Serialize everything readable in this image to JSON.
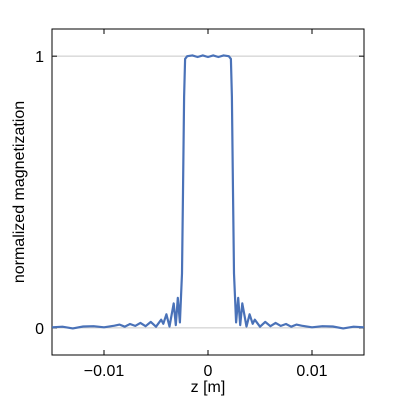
{
  "chart_data": {
    "type": "line",
    "title": "",
    "xlabel": "z [m]",
    "ylabel": "normalized magnetization",
    "xlim": [
      -0.015,
      0.015
    ],
    "ylim": [
      -0.1,
      1.1
    ],
    "x_ticks": [
      {
        "value": -0.01,
        "label": "−0.01"
      },
      {
        "value": 0,
        "label": "0"
      },
      {
        "value": 0.01,
        "label": "0.01"
      }
    ],
    "y_ticks": [
      {
        "value": 0,
        "label": "0"
      },
      {
        "value": 1,
        "label": "1"
      }
    ],
    "grid": "horizontal at y-ticks",
    "line_color": "#4a72b8",
    "series": [
      {
        "points": [
          [
            -0.015,
            0.002
          ],
          [
            -0.014,
            0.004
          ],
          [
            -0.013,
            -0.002
          ],
          [
            -0.012,
            0.005
          ],
          [
            -0.011,
            0.006
          ],
          [
            -0.01,
            0.002
          ],
          [
            -0.009,
            0.008
          ],
          [
            -0.0085,
            0.012
          ],
          [
            -0.008,
            0.004
          ],
          [
            -0.0075,
            0.014
          ],
          [
            -0.007,
            0.007
          ],
          [
            -0.0065,
            0.018
          ],
          [
            -0.006,
            0.006
          ],
          [
            -0.0055,
            0.022
          ],
          [
            -0.005,
            0.004
          ],
          [
            -0.0045,
            0.03
          ],
          [
            -0.0043,
            0.015
          ],
          [
            -0.004,
            0.05
          ],
          [
            -0.0037,
            0.005
          ],
          [
            -0.0033,
            0.09
          ],
          [
            -0.0031,
            0.01
          ],
          [
            -0.0029,
            0.11
          ],
          [
            -0.0027,
            0.02
          ],
          [
            -0.0025,
            0.2
          ],
          [
            -0.0024,
            0.5
          ],
          [
            -0.0023,
            0.85
          ],
          [
            -0.0022,
            0.99
          ],
          [
            -0.002,
            1.0
          ],
          [
            -0.0015,
            1.003
          ],
          [
            -0.001,
            0.997
          ],
          [
            -0.0005,
            1.003
          ],
          [
            0,
            0.997
          ],
          [
            0.0005,
            1.003
          ],
          [
            0.001,
            0.997
          ],
          [
            0.0015,
            1.003
          ],
          [
            0.002,
            1.0
          ],
          [
            0.0022,
            0.99
          ],
          [
            0.0023,
            0.85
          ],
          [
            0.0024,
            0.5
          ],
          [
            0.0025,
            0.2
          ],
          [
            0.0027,
            0.02
          ],
          [
            0.0029,
            0.11
          ],
          [
            0.0031,
            0.01
          ],
          [
            0.0033,
            0.09
          ],
          [
            0.0037,
            0.005
          ],
          [
            0.004,
            0.05
          ],
          [
            0.0043,
            0.015
          ],
          [
            0.0045,
            0.03
          ],
          [
            0.005,
            0.004
          ],
          [
            0.0055,
            0.022
          ],
          [
            0.006,
            0.006
          ],
          [
            0.0065,
            0.018
          ],
          [
            0.007,
            0.007
          ],
          [
            0.0075,
            0.014
          ],
          [
            0.008,
            0.004
          ],
          [
            0.0085,
            0.012
          ],
          [
            0.009,
            0.008
          ],
          [
            0.01,
            0.002
          ],
          [
            0.011,
            0.006
          ],
          [
            0.012,
            0.005
          ],
          [
            0.013,
            -0.002
          ],
          [
            0.014,
            0.004
          ],
          [
            0.015,
            0.002
          ]
        ]
      }
    ]
  }
}
